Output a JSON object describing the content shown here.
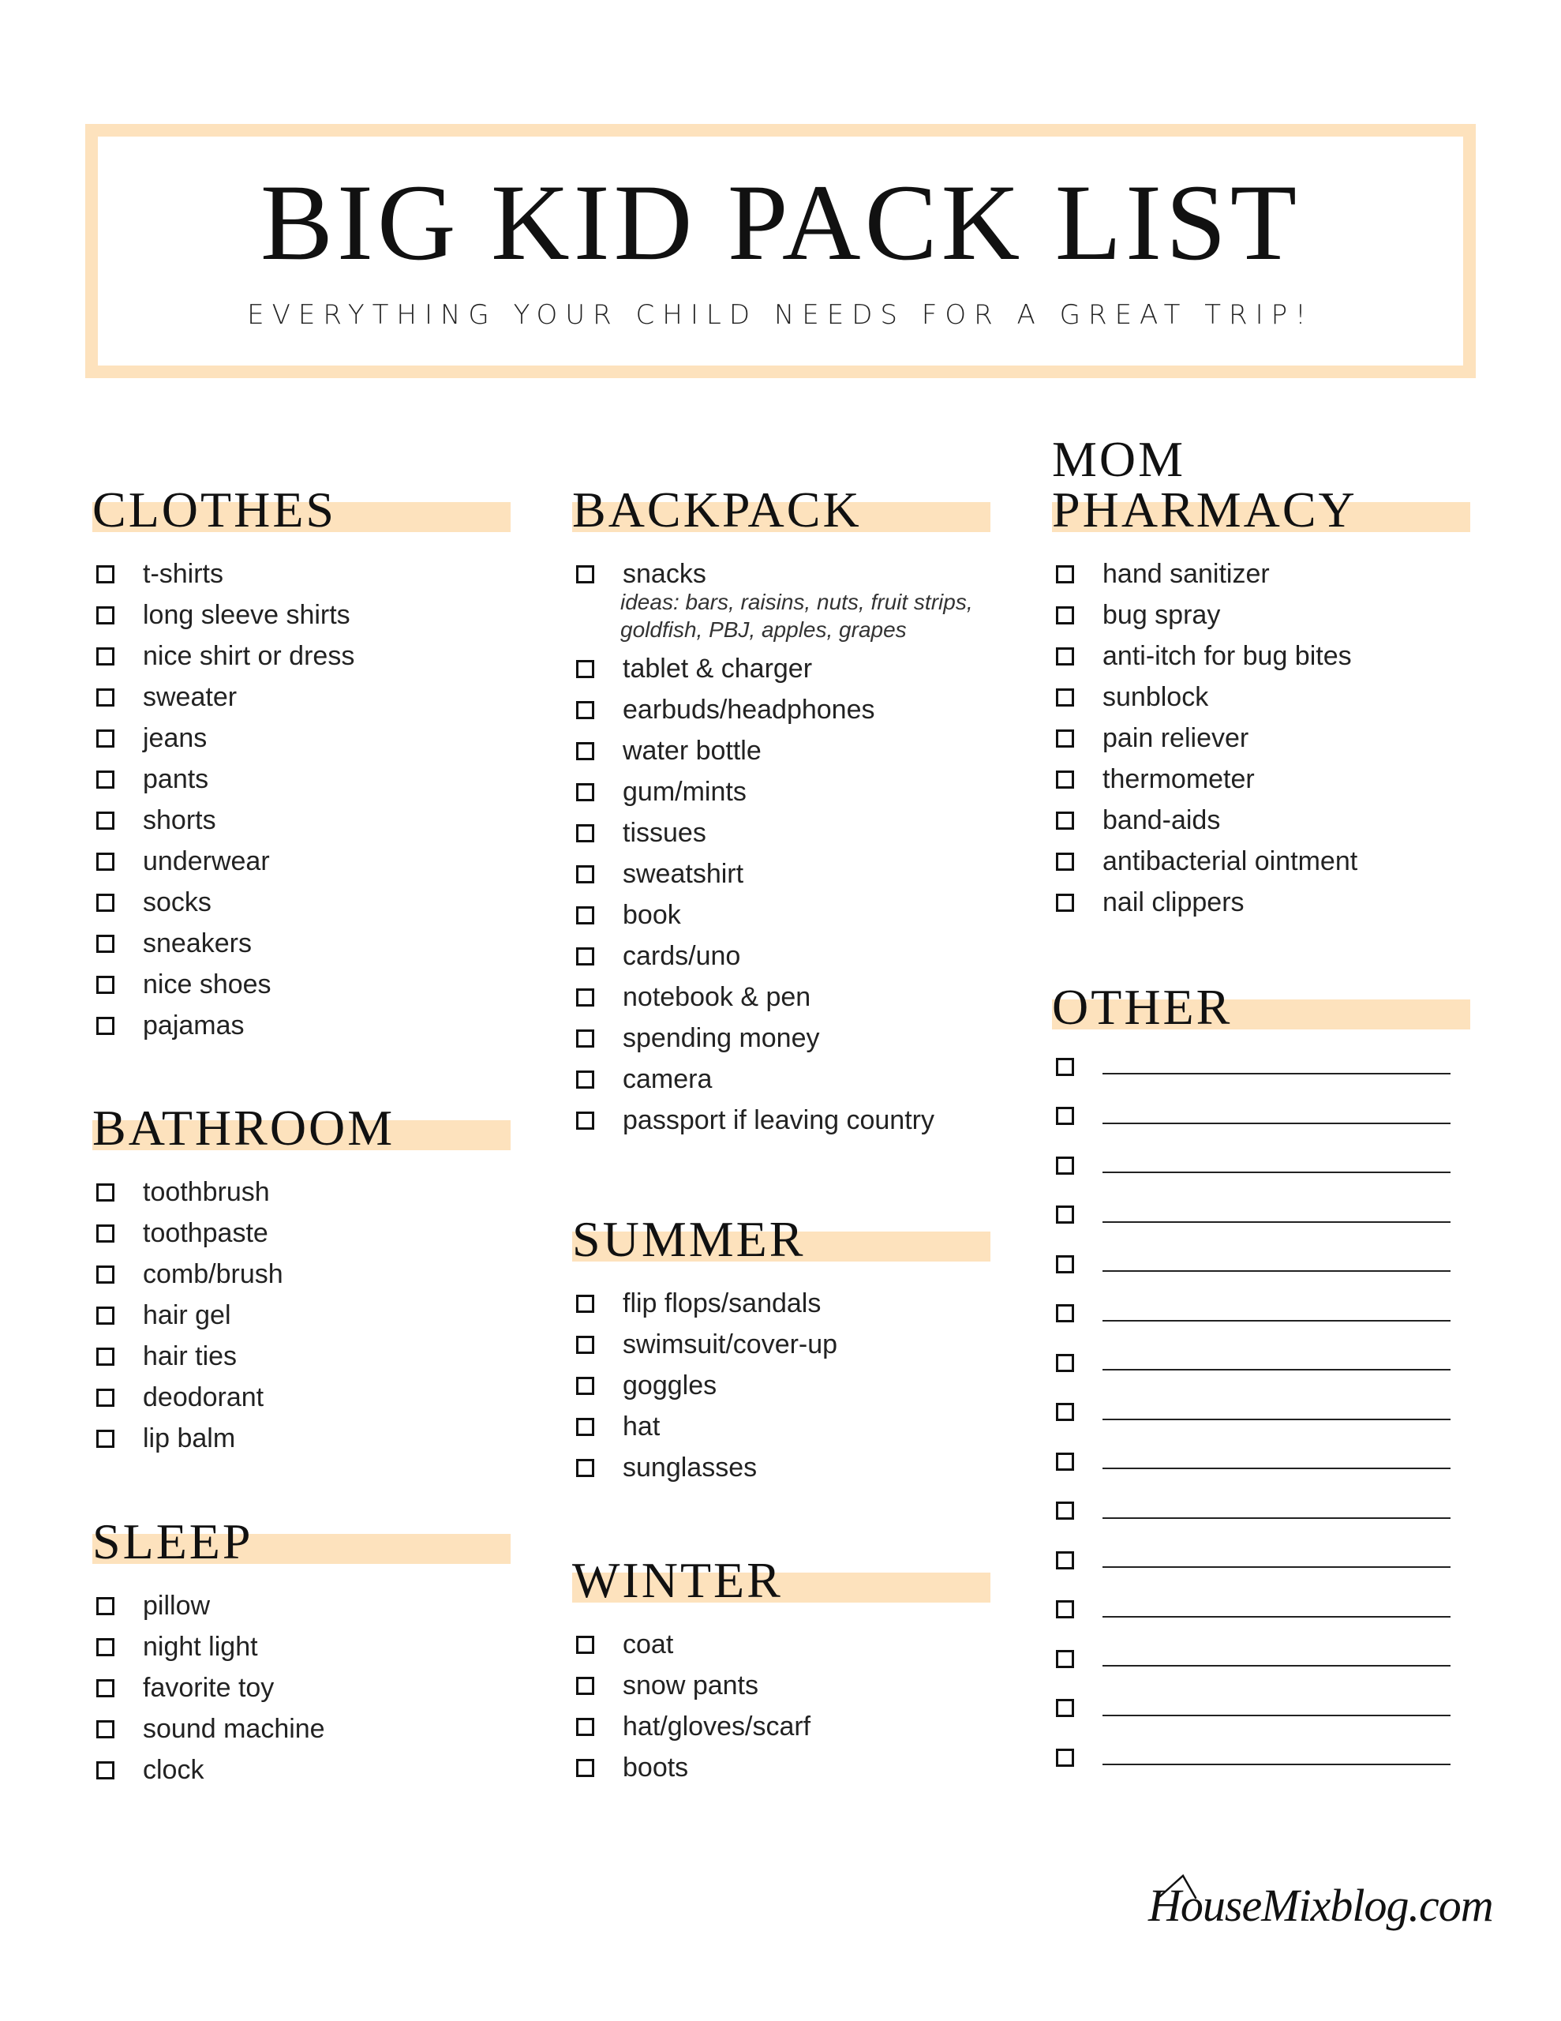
{
  "header": {
    "title": "BIG KID PACK LIST",
    "subtitle": "EVERYTHING YOUR CHILD NEEDS FOR A GREAT TRIP!"
  },
  "colors": {
    "accent": "#fde2bd",
    "text": "#111111"
  },
  "sections": {
    "clothes": {
      "title": "CLOTHES",
      "items": [
        {
          "label": "t-shirts"
        },
        {
          "label": "long sleeve shirts"
        },
        {
          "label": "nice shirt or dress"
        },
        {
          "label": "sweater"
        },
        {
          "label": "jeans"
        },
        {
          "label": "pants"
        },
        {
          "label": "shorts"
        },
        {
          "label": "underwear"
        },
        {
          "label": "socks"
        },
        {
          "label": "sneakers"
        },
        {
          "label": "nice shoes"
        },
        {
          "label": "pajamas"
        }
      ]
    },
    "bathroom": {
      "title": "BATHROOM",
      "items": [
        {
          "label": "toothbrush"
        },
        {
          "label": "toothpaste"
        },
        {
          "label": "comb/brush"
        },
        {
          "label": "hair gel"
        },
        {
          "label": "hair ties"
        },
        {
          "label": "deodorant"
        },
        {
          "label": "lip balm"
        }
      ]
    },
    "sleep": {
      "title": "SLEEP",
      "items": [
        {
          "label": "pillow"
        },
        {
          "label": "night light"
        },
        {
          "label": "favorite toy"
        },
        {
          "label": "sound machine"
        },
        {
          "label": "clock"
        }
      ]
    },
    "backpack": {
      "title": "BACKPACK",
      "items": [
        {
          "label": "snacks",
          "note": "ideas: bars, raisins, nuts, fruit strips, goldfish, PBJ, apples, grapes"
        },
        {
          "label": "tablet & charger"
        },
        {
          "label": "earbuds/headphones"
        },
        {
          "label": "water bottle"
        },
        {
          "label": "gum/mints"
        },
        {
          "label": "tissues"
        },
        {
          "label": "sweatshirt"
        },
        {
          "label": "book"
        },
        {
          "label": "cards/uno"
        },
        {
          "label": "notebook & pen"
        },
        {
          "label": "spending money"
        },
        {
          "label": "camera"
        },
        {
          "label": "passport if leaving country"
        }
      ]
    },
    "summer": {
      "title": "SUMMER",
      "items": [
        {
          "label": "flip flops/sandals"
        },
        {
          "label": "swimsuit/cover-up"
        },
        {
          "label": "goggles"
        },
        {
          "label": "hat"
        },
        {
          "label": "sunglasses"
        }
      ]
    },
    "winter": {
      "title": "WINTER",
      "items": [
        {
          "label": "coat"
        },
        {
          "label": "snow pants"
        },
        {
          "label": "hat/gloves/scarf"
        },
        {
          "label": "boots"
        }
      ]
    },
    "mom_pharmacy": {
      "title": "MOM PHARMACY",
      "items": [
        {
          "label": "hand sanitizer"
        },
        {
          "label": "bug spray"
        },
        {
          "label": "anti-itch for bug bites"
        },
        {
          "label": "sunblock"
        },
        {
          "label": "pain reliever"
        },
        {
          "label": "thermometer"
        },
        {
          "label": "band-aids"
        },
        {
          "label": "antibacterial ointment"
        },
        {
          "label": "nail clippers"
        }
      ]
    },
    "other": {
      "title": "OTHER"
    }
  },
  "footer": {
    "signature": "HouseMixblog.com"
  }
}
